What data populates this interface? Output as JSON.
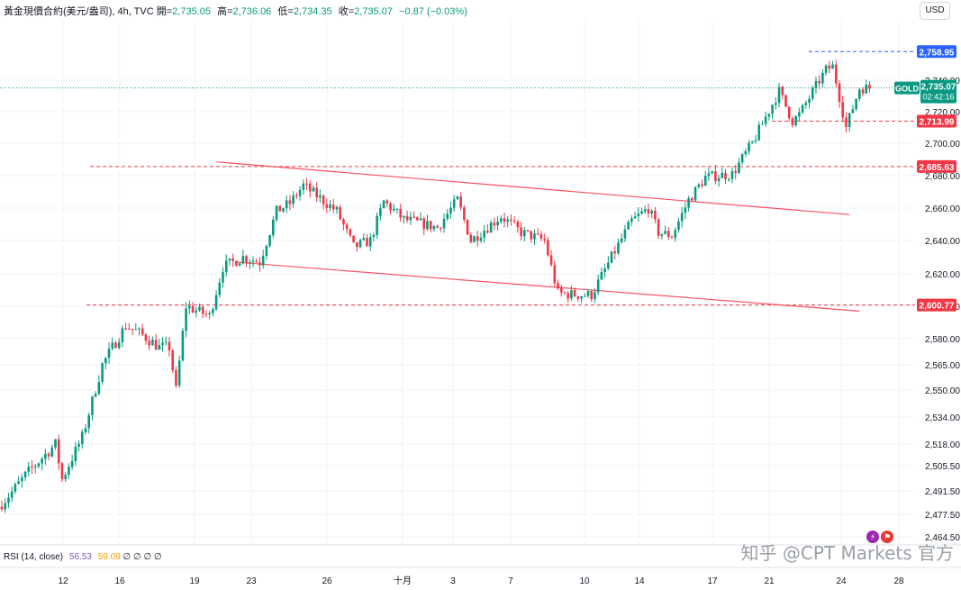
{
  "header": {
    "symbol": "黃金現價合約(美元/盎司), 4h, TVC",
    "open_label": "開=",
    "open": "2,735.05",
    "high_label": "高=",
    "high": "2,736.06",
    "low_label": "低=",
    "low": "2,734.35",
    "close_label": "收=",
    "close": "2,735.07",
    "change": "−0.87 (−0.03%)"
  },
  "currency_button": "USD",
  "rsi": {
    "label": "RSI (14, close)",
    "value1": "56.53",
    "value2": "59.09",
    "rest": "∅ ∅ ∅ ∅"
  },
  "watermark": "知乎 @CPT Markets 官方",
  "colors": {
    "up": "#089981",
    "down": "#f23645",
    "channel": "#f7525f",
    "blue": "#2962ff"
  },
  "chart_data": {
    "type": "candlestick",
    "ylim": [
      2478,
      2768
    ],
    "y_ticks": [
      2740,
      2720,
      2700,
      2680,
      2660,
      2640,
      2620,
      2600,
      2580,
      2565,
      2550,
      2534,
      2518,
      2505.5,
      2491.5,
      2477.5,
      2464.5
    ],
    "y_tick_labels": [
      "2,740.00",
      "2,720.00",
      "2,700.00",
      "2,680.00",
      "2,660.00",
      "2,640.00",
      "2,620.00",
      "2,600.00",
      "2,580.00",
      "2,565.00",
      "2,550.00",
      "2,534.00",
      "2,518.00",
      "2,505.50",
      "2,491.50",
      "2,477.50",
      "2,464.50"
    ],
    "x_ticks": [
      "12",
      "16",
      "19",
      "23",
      "26",
      "十月",
      "3",
      "7",
      "10",
      "14",
      "17",
      "21",
      "24",
      "28"
    ],
    "levels": [
      {
        "value": 2758.95,
        "label": "2,758.95",
        "color": "#2962ff"
      },
      {
        "value": 2713.99,
        "label": "2,713.99",
        "color": "#f23645"
      },
      {
        "value": 2685.63,
        "label": "2,685.63",
        "color": "#f23645"
      },
      {
        "value": 2600.77,
        "label": "2,600.77",
        "color": "#f23645"
      }
    ],
    "last_price": {
      "symbol": "GOLD",
      "value": 2735.07,
      "label": "2,735.07",
      "countdown": "02:42:16"
    },
    "channel": {
      "upper": [
        [
          64,
          2688.5
        ],
        [
          253,
          2656
        ]
      ],
      "lower": [
        [
          70,
          2627
        ],
        [
          256,
          2597
        ]
      ]
    },
    "anchors": [
      [
        0,
        2484
      ],
      [
        7,
        2500
      ],
      [
        14,
        2514
      ],
      [
        16,
        2518
      ],
      [
        18,
        2498
      ],
      [
        24,
        2522
      ],
      [
        30,
        2565
      ],
      [
        37,
        2588
      ],
      [
        40,
        2585
      ],
      [
        47,
        2575
      ],
      [
        50,
        2575
      ],
      [
        52,
        2550
      ],
      [
        55,
        2600
      ],
      [
        62,
        2594
      ],
      [
        66,
        2624
      ],
      [
        72,
        2630
      ],
      [
        77,
        2627
      ],
      [
        82,
        2658
      ],
      [
        86,
        2663
      ],
      [
        90,
        2674
      ],
      [
        100,
        2658
      ],
      [
        105,
        2636
      ],
      [
        110,
        2640
      ],
      [
        114,
        2664
      ],
      [
        120,
        2653
      ],
      [
        130,
        2648
      ],
      [
        136,
        2665
      ],
      [
        140,
        2640
      ],
      [
        149,
        2655
      ],
      [
        155,
        2645
      ],
      [
        162,
        2640
      ],
      [
        166,
        2608
      ],
      [
        172,
        2607
      ],
      [
        176,
        2607
      ],
      [
        182,
        2630
      ],
      [
        188,
        2652
      ],
      [
        193,
        2660
      ],
      [
        196,
        2645
      ],
      [
        200,
        2643
      ],
      [
        205,
        2665
      ],
      [
        210,
        2679
      ],
      [
        218,
        2681
      ],
      [
        224,
        2700
      ],
      [
        232,
        2733
      ],
      [
        236,
        2714
      ],
      [
        238,
        2718
      ],
      [
        246,
        2747
      ],
      [
        248,
        2749
      ],
      [
        252,
        2710
      ],
      [
        256,
        2735
      ],
      [
        259,
        2735
      ]
    ]
  }
}
